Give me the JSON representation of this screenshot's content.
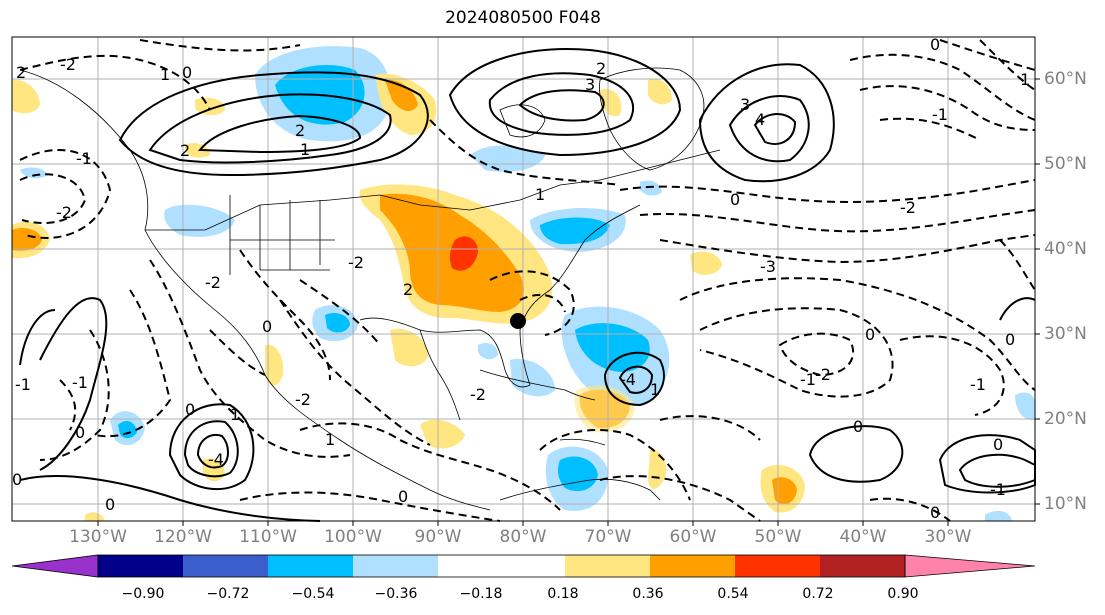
{
  "title": "2024080500 F048",
  "lon_labels": [
    "130°W",
    "120°W",
    "110°W",
    "100°W",
    "90°W",
    "80°W",
    "70°W",
    "60°W",
    "50°W",
    "40°W",
    "30°W"
  ],
  "lat_labels": [
    "60°N",
    "50°N",
    "40°N",
    "30°N",
    "20°N",
    "10°N"
  ],
  "contour_labels": [
    "2",
    "1",
    "0",
    "-1",
    "-2",
    "-3",
    "-4",
    "3",
    "4"
  ],
  "colorbar": {
    "ticks": [
      "−0.90",
      "−0.72",
      "−0.54",
      "−0.36",
      "−0.18",
      "0.18",
      "0.36",
      "0.54",
      "0.72",
      "0.90"
    ],
    "colors": [
      "#9932cc",
      "#00008b",
      "#3a5fcd",
      "#00bfff",
      "#b0e0ff",
      "#ffffff",
      "#ffe680",
      "#ffa000",
      "#ff3300",
      "#b22222",
      "#ff82ab"
    ]
  },
  "marker": "point"
}
